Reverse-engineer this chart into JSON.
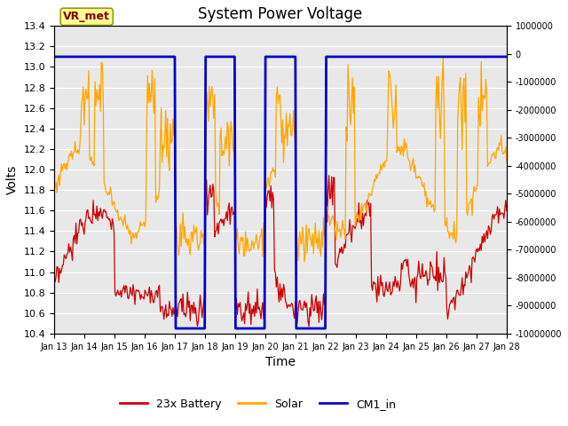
{
  "title": "System Power Voltage",
  "xlabel": "Time",
  "ylabel": "Volts",
  "ylim_left": [
    10.4,
    13.4
  ],
  "ylim_right": [
    -10000000,
    1000000
  ],
  "yticks_right": [
    1000000,
    0,
    -1000000,
    -2000000,
    -3000000,
    -4000000,
    -5000000,
    -6000000,
    -7000000,
    -8000000,
    -9000000,
    -10000000
  ],
  "ytick_labels_right": [
    "1000000",
    "0",
    "-1000000",
    "-2000000",
    "-3000000",
    "-4000000",
    "-5000000",
    "-6000000",
    "-7000000",
    "-8000000",
    "-9000000",
    "-10000000"
  ],
  "xlim": [
    0,
    15
  ],
  "xtick_positions": [
    0,
    1,
    2,
    3,
    4,
    5,
    6,
    7,
    8,
    9,
    10,
    11,
    12,
    13,
    14,
    15
  ],
  "xtick_labels": [
    "Jan 13",
    "Jan 14",
    "Jan 15",
    "Jan 16",
    "Jan 17",
    "Jan 18",
    "Jan 19",
    "Jan 20",
    "Jan 21",
    "Jan 22",
    "Jan 23",
    "Jan 24",
    "Jan 25",
    "Jan 26",
    "Jan 27",
    "Jan 28"
  ],
  "bg_color": "#ffffff",
  "plot_bg_color": "#e8e8e8",
  "grid_color": "#ffffff",
  "annotation_text": "VR_met",
  "annotation_box_facecolor": "#ffff99",
  "annotation_box_edgecolor": "#999900",
  "annotation_text_color": "#880000",
  "legend_entries": [
    "23x Battery",
    "Solar",
    "CM1_in"
  ],
  "battery_color": "#cc0000",
  "solar_color": "#ffa500",
  "cm1_color": "#0000cc",
  "yticks_left": [
    10.4,
    10.6,
    10.8,
    11.0,
    11.2,
    11.4,
    11.6,
    11.8,
    12.0,
    12.2,
    12.4,
    12.6,
    12.8,
    13.0,
    13.2,
    13.4
  ]
}
